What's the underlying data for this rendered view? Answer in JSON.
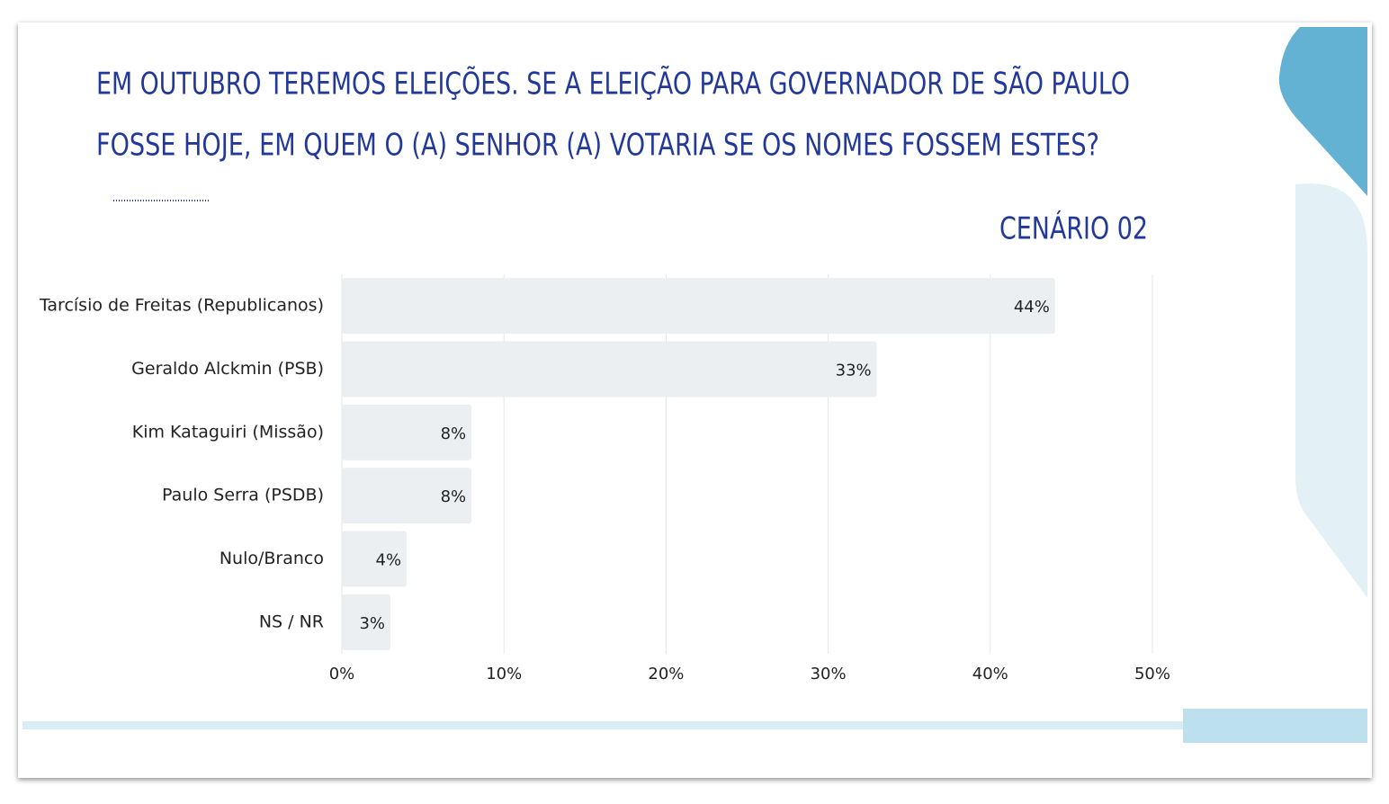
{
  "chart_data": {
    "type": "hbar",
    "title": [
      "EM OUTUBRO TEREMOS ELEIÇÕES. SE A ELEIÇÃO PARA GOVERNADOR DE SÃO PAULO",
      "FOSSE HOJE, EM QUEM O (A) SENHOR (A) VOTARIA SE OS NOMES FOSSEM ESTES?"
    ],
    "subtitle": "CENÁRIO 02",
    "categories": [
      "Tarcísio de Freitas (Republicanos)",
      "Geraldo Alckmin (PSB)",
      "Kim Kataguiri (Missão)",
      "Paulo Serra (PSDB)",
      "Nulo/Branco",
      "NS / NR"
    ],
    "values": [
      44,
      33,
      8,
      8,
      4,
      3
    ],
    "value_labels": [
      "44%",
      "33%",
      "8%",
      "8%",
      "4%",
      "3%"
    ],
    "color": "#eceff1",
    "xlim": [
      0,
      50
    ],
    "xticks": [
      {
        "value": 0,
        "label": "0%"
      },
      {
        "value": 10,
        "label": "10%"
      },
      {
        "value": 20,
        "label": "20%"
      },
      {
        "value": 30,
        "label": "30%"
      },
      {
        "value": 40,
        "label": "40%"
      },
      {
        "value": 50,
        "label": "50%"
      }
    ],
    "grid": true
  }
}
